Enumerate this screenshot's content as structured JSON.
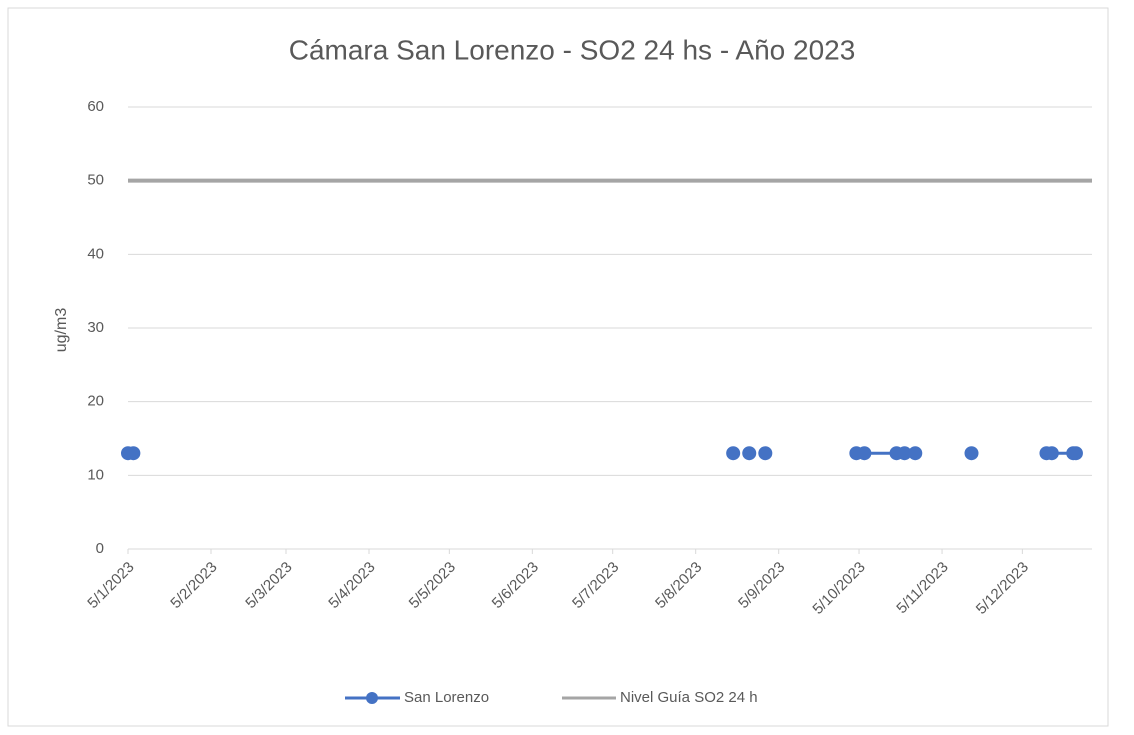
{
  "chart_data": {
    "type": "line",
    "title": "Cámara San Lorenzo - SO2 24 hs - Año 2023",
    "y_label": "ug/m3",
    "x": [
      "5/1/2023",
      "7/1/2023",
      "1/8/2023",
      "19/8/2023",
      "22/8/2023",
      "25/8/2023",
      "28/8/2023",
      "31/8/2023",
      "20/9/2023",
      "4/10/2023",
      "7/10/2023",
      "19/10/2023",
      "22/10/2023",
      "26/10/2023",
      "5/11/2023",
      "16/11/2023",
      "1/12/2023",
      "14/12/2023",
      "16/12/2023",
      "24/12/2023",
      "25/12/2023"
    ],
    "series": [
      {
        "name": "San Lorenzo",
        "color": "#4472c4",
        "values": [
          13,
          13,
          null,
          13,
          null,
          13,
          null,
          13,
          null,
          13,
          13,
          13,
          13,
          13,
          null,
          13,
          null,
          13,
          13,
          13,
          13
        ]
      }
    ],
    "guideline": {
      "name": "Nivel Guía SO2 24 h",
      "color": "#a5a5a5",
      "value": 50
    },
    "xlim": [
      "5/1/2023",
      "31/12/2023"
    ],
    "xticks": [
      "5/1/2023",
      "5/2/2023",
      "5/3/2023",
      "5/4/2023",
      "5/5/2023",
      "5/6/2023",
      "5/7/2023",
      "5/8/2023",
      "5/9/2023",
      "5/10/2023",
      "5/11/2023",
      "5/12/2023"
    ],
    "ylim": [
      0,
      60
    ],
    "yticks": [
      0,
      10,
      20,
      30,
      40,
      50,
      60
    ],
    "grid": true,
    "legend": "bottom"
  }
}
